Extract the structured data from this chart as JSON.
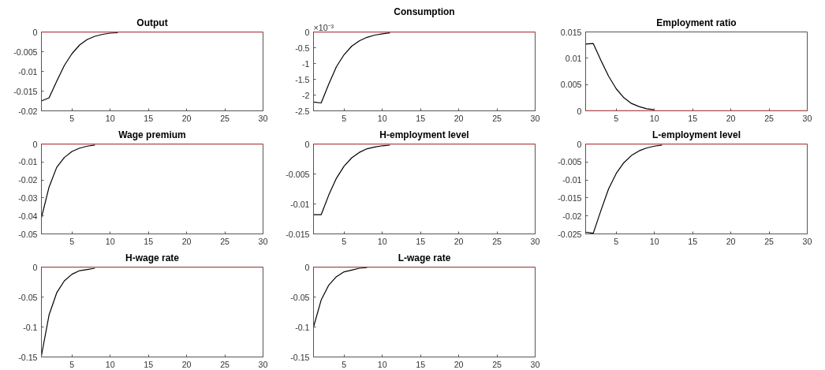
{
  "chart_data": [
    {
      "type": "line",
      "title": "Output",
      "x": [
        1,
        2,
        3,
        4,
        5,
        6,
        7,
        8,
        9,
        10,
        11
      ],
      "series": [
        {
          "color": "#000000",
          "values": [
            -0.0175,
            -0.0167,
            -0.0125,
            -0.0085,
            -0.0055,
            -0.0033,
            -0.0019,
            -0.0011,
            -0.0006,
            -0.0003,
            -0.0002
          ]
        }
      ],
      "xlim": [
        1,
        30
      ],
      "xticks": [
        5,
        10,
        15,
        20,
        25,
        30
      ],
      "ylim": [
        -0.02,
        0
      ],
      "yticks": [
        -0.02,
        -0.015,
        -0.01,
        -0.005,
        0
      ],
      "ref_lines": [
        {
          "axis": "y",
          "value": 0,
          "color": "#e8434e"
        }
      ]
    },
    {
      "type": "line",
      "title": "Consumption",
      "annotations": [
        "×10⁻³"
      ],
      "x": [
        1,
        2,
        3,
        4,
        5,
        6,
        7,
        8,
        9,
        10,
        11
      ],
      "series": [
        {
          "color": "#000000",
          "values": [
            -2.22,
            -2.25,
            -1.65,
            -1.1,
            -0.72,
            -0.45,
            -0.28,
            -0.17,
            -0.1,
            -0.06,
            -0.03
          ]
        }
      ],
      "xlim": [
        1,
        30
      ],
      "xticks": [
        5,
        10,
        15,
        20,
        25,
        30
      ],
      "ylim": [
        -2.5,
        0
      ],
      "yticks": [
        -2.5,
        -2,
        -1.5,
        -1,
        -0.5,
        0
      ],
      "ref_lines": [
        {
          "axis": "y",
          "value": 0,
          "color": "#e8434e"
        }
      ]
    },
    {
      "type": "line",
      "title": "Employment ratio",
      "x": [
        1,
        2,
        3,
        4,
        5,
        6,
        7,
        8,
        9,
        10
      ],
      "series": [
        {
          "color": "#000000",
          "values": [
            0.0127,
            0.0128,
            0.0096,
            0.0066,
            0.0042,
            0.0025,
            0.0014,
            0.0008,
            0.0004,
            0.0002
          ]
        }
      ],
      "xlim": [
        1,
        30
      ],
      "xticks": [
        5,
        10,
        15,
        20,
        25,
        30
      ],
      "ylim": [
        0,
        0.015
      ],
      "yticks": [
        0,
        0.005,
        0.01,
        0.015
      ],
      "ref_lines": [
        {
          "axis": "y",
          "value": 0,
          "color": "#e8434e"
        }
      ]
    },
    {
      "type": "line",
      "title": "Wage premium",
      "x": [
        1,
        2,
        3,
        4,
        5,
        6,
        7,
        8
      ],
      "series": [
        {
          "color": "#000000",
          "values": [
            -0.041,
            -0.024,
            -0.013,
            -0.0075,
            -0.0042,
            -0.0023,
            -0.0012,
            -0.0006
          ]
        }
      ],
      "xlim": [
        1,
        30
      ],
      "xticks": [
        5,
        10,
        15,
        20,
        25,
        30
      ],
      "ylim": [
        -0.05,
        0
      ],
      "yticks": [
        -0.05,
        -0.04,
        -0.03,
        -0.02,
        -0.01,
        0
      ],
      "ref_lines": [
        {
          "axis": "y",
          "value": 0,
          "color": "#e8434e"
        }
      ]
    },
    {
      "type": "line",
      "title": "H-employment level",
      "x": [
        1,
        2,
        3,
        4,
        5,
        6,
        7,
        8,
        9,
        10,
        11
      ],
      "series": [
        {
          "color": "#000000",
          "values": [
            -0.0118,
            -0.0118,
            -0.0085,
            -0.0057,
            -0.0037,
            -0.0023,
            -0.0014,
            -0.0008,
            -0.0005,
            -0.0003,
            -0.0002
          ]
        }
      ],
      "xlim": [
        1,
        30
      ],
      "xticks": [
        5,
        10,
        15,
        20,
        25,
        30
      ],
      "ylim": [
        -0.015,
        0
      ],
      "yticks": [
        -0.015,
        -0.01,
        -0.005,
        0
      ],
      "ref_lines": [
        {
          "axis": "y",
          "value": 0,
          "color": "#e8434e"
        }
      ]
    },
    {
      "type": "line",
      "title": "L-employment level",
      "x": [
        1,
        2,
        3,
        4,
        5,
        6,
        7,
        8,
        9,
        10,
        11
      ],
      "series": [
        {
          "color": "#000000",
          "values": [
            -0.0245,
            -0.0248,
            -0.0185,
            -0.0125,
            -0.0082,
            -0.0052,
            -0.0032,
            -0.0019,
            -0.0011,
            -0.0006,
            -0.0003
          ]
        }
      ],
      "xlim": [
        1,
        30
      ],
      "xticks": [
        5,
        10,
        15,
        20,
        25,
        30
      ],
      "ylim": [
        -0.025,
        0
      ],
      "yticks": [
        -0.025,
        -0.02,
        -0.015,
        -0.01,
        -0.005,
        0
      ],
      "ref_lines": [
        {
          "axis": "y",
          "value": 0,
          "color": "#e8434e"
        }
      ]
    },
    {
      "type": "line",
      "title": "H-wage rate",
      "x": [
        1,
        2,
        3,
        4,
        5,
        6,
        7,
        8
      ],
      "series": [
        {
          "color": "#000000",
          "values": [
            -0.148,
            -0.08,
            -0.043,
            -0.023,
            -0.012,
            -0.006,
            -0.004,
            -0.002
          ]
        }
      ],
      "xlim": [
        1,
        30
      ],
      "xticks": [
        5,
        10,
        15,
        20,
        25,
        30
      ],
      "ylim": [
        -0.15,
        0
      ],
      "yticks": [
        -0.15,
        -0.1,
        -0.05,
        0
      ],
      "ref_lines": [
        {
          "axis": "y",
          "value": 0,
          "color": "#e8434e"
        }
      ]
    },
    {
      "type": "line",
      "title": "L-wage rate",
      "x": [
        1,
        2,
        3,
        4,
        5,
        6,
        7,
        8
      ],
      "series": [
        {
          "color": "#000000",
          "values": [
            -0.1,
            -0.055,
            -0.03,
            -0.016,
            -0.008,
            -0.005,
            -0.002,
            -0.001
          ]
        }
      ],
      "xlim": [
        1,
        30
      ],
      "xticks": [
        5,
        10,
        15,
        20,
        25,
        30
      ],
      "ylim": [
        -0.15,
        0
      ],
      "yticks": [
        -0.15,
        -0.1,
        -0.05,
        0
      ],
      "ref_lines": [
        {
          "axis": "y",
          "value": 0,
          "color": "#e8434e"
        }
      ]
    }
  ]
}
